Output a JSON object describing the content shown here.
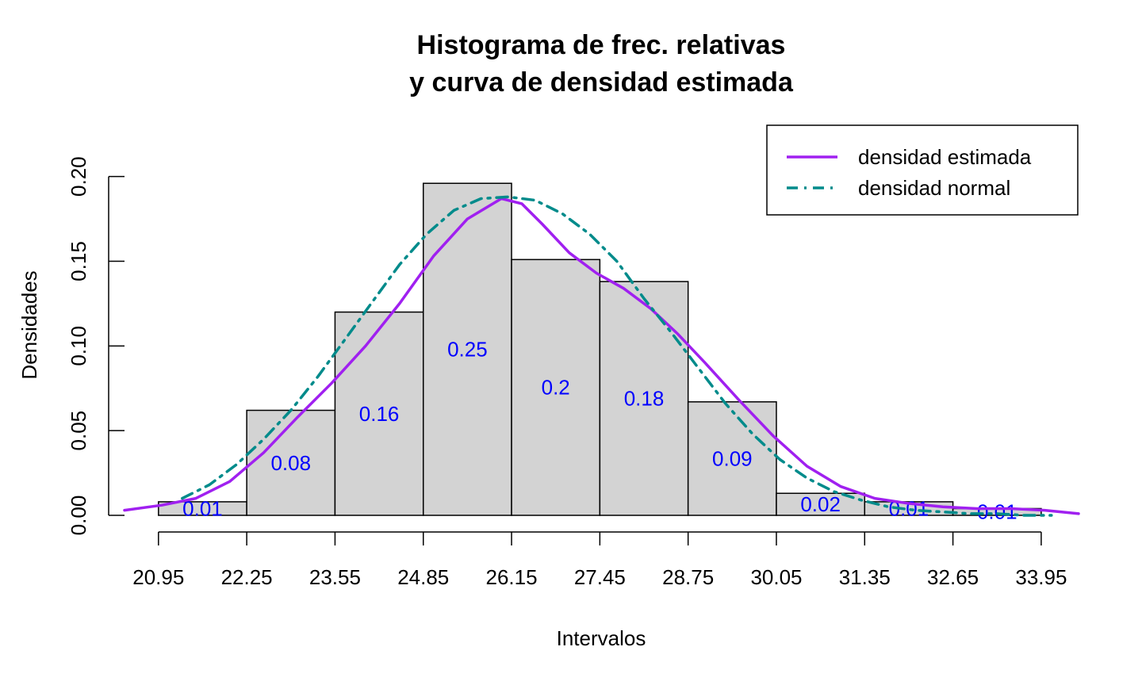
{
  "chart_data": {
    "type": "bar",
    "title": [
      "Histograma de frec. relativas",
      "y curva de densidad estimada"
    ],
    "xlabel": "Intervalos",
    "ylabel": "Densidades",
    "x_ticks": [
      "20.95",
      "22.25",
      "23.55",
      "24.85",
      "26.15",
      "27.45",
      "28.75",
      "30.05",
      "31.35",
      "32.65",
      "33.95"
    ],
    "y_ticks": [
      "0.00",
      "0.05",
      "0.10",
      "0.15",
      "0.20"
    ],
    "xlim": [
      20.45,
      34.5
    ],
    "ylim": [
      0,
      0.205
    ],
    "bin_edges": [
      20.95,
      22.25,
      23.55,
      24.85,
      26.15,
      27.45,
      28.75,
      30.05,
      31.35,
      32.65,
      33.95
    ],
    "densities": [
      0.008,
      0.062,
      0.12,
      0.196,
      0.151,
      0.138,
      0.067,
      0.013,
      0.008,
      0.004
    ],
    "relative_freq_labels": [
      "0.01",
      "0.08",
      "0.16",
      "0.25",
      "0.2",
      "0.18",
      "0.09",
      "0.02",
      "0.01",
      "0.01"
    ],
    "series": [
      {
        "name": "densidad estimada",
        "color": "#A020F0",
        "line_style": "solid",
        "x": [
          20.45,
          21.0,
          21.5,
          22.0,
          22.5,
          23.0,
          23.5,
          24.0,
          24.5,
          25.0,
          25.5,
          26.0,
          26.3,
          26.6,
          27.0,
          27.4,
          27.8,
          28.2,
          28.6,
          29.0,
          29.5,
          30.0,
          30.5,
          31.0,
          31.5,
          32.0,
          32.5,
          33.0,
          33.5,
          34.0,
          34.5
        ],
        "y": [
          0.003,
          0.006,
          0.01,
          0.02,
          0.037,
          0.058,
          0.078,
          0.1,
          0.125,
          0.153,
          0.175,
          0.187,
          0.184,
          0.172,
          0.155,
          0.143,
          0.134,
          0.122,
          0.107,
          0.09,
          0.068,
          0.047,
          0.029,
          0.017,
          0.01,
          0.007,
          0.005,
          0.004,
          0.004,
          0.003,
          0.001
        ]
      },
      {
        "name": "densidad normal",
        "color": "#008B8B",
        "line_style": "dot-dash",
        "x": [
          21.3,
          21.7,
          22.1,
          22.5,
          22.9,
          23.3,
          23.7,
          24.1,
          24.5,
          24.9,
          25.3,
          25.7,
          26.1,
          26.5,
          26.9,
          27.3,
          27.7,
          28.1,
          28.5,
          28.9,
          29.3,
          29.7,
          30.1,
          30.5,
          30.9,
          31.3,
          31.7,
          32.1,
          32.5,
          32.9,
          33.3,
          33.7,
          34.1
        ],
        "y": [
          0.01,
          0.018,
          0.03,
          0.045,
          0.062,
          0.082,
          0.104,
          0.126,
          0.148,
          0.166,
          0.18,
          0.187,
          0.188,
          0.186,
          0.178,
          0.166,
          0.15,
          0.128,
          0.108,
          0.087,
          0.066,
          0.048,
          0.033,
          0.022,
          0.014,
          0.009,
          0.005,
          0.003,
          0.002,
          0.001,
          0.001,
          0.0,
          0.0
        ]
      }
    ],
    "legend": {
      "position": "top-right",
      "entries": [
        "densidad estimada",
        "densidad normal"
      ]
    },
    "bar_fill": "#D3D3D3",
    "label_color": "#0000FF",
    "grid": false
  }
}
